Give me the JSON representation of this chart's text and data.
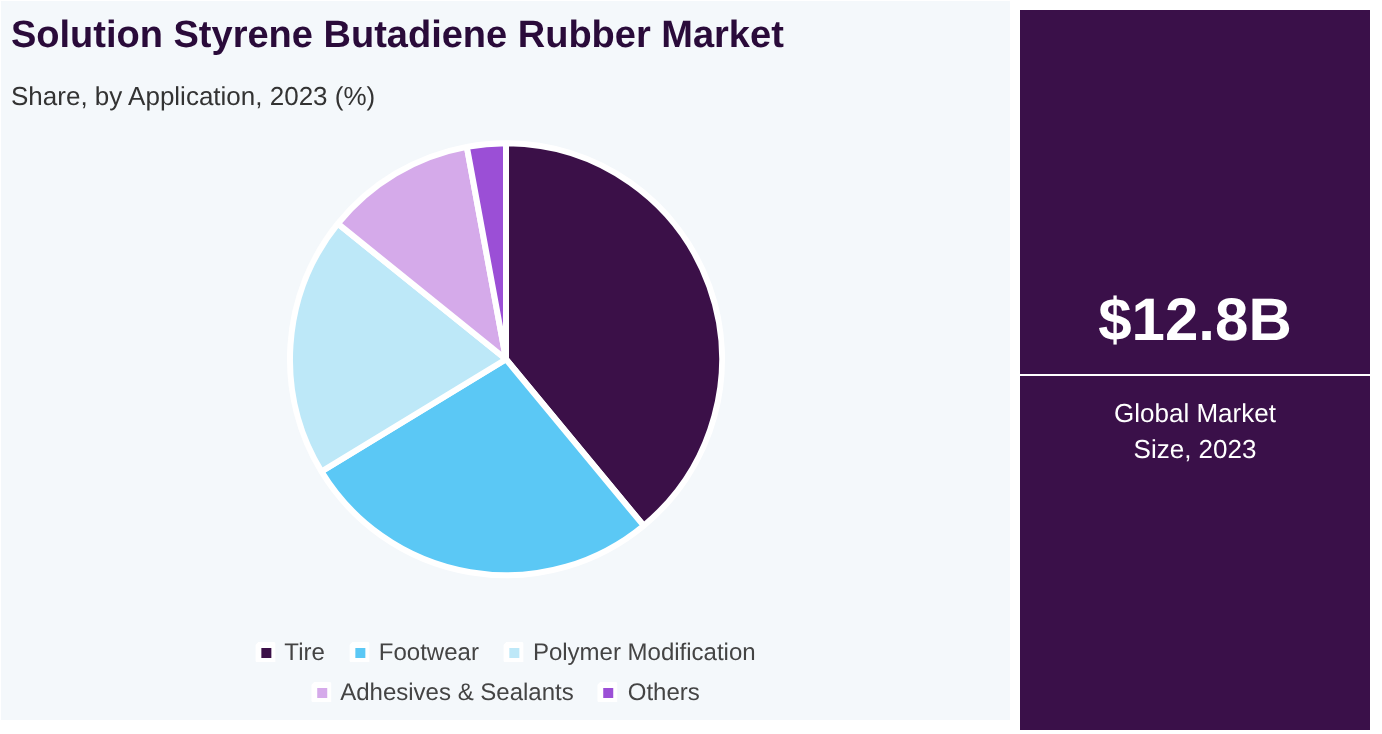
{
  "chart_data": {
    "type": "pie",
    "title": "Solution Styrene Butadiene Rubber Market",
    "subtitle": "Share, by Application, 2023 (%)",
    "categories": [
      "Tire",
      "Footwear",
      "Polymer Modification",
      "Adhesives & Sealants",
      "Others"
    ],
    "values": [
      39,
      27.3,
      19.5,
      11.3,
      2.9
    ],
    "colors": [
      "#3b1048",
      "#5bc8f5",
      "#bde8f8",
      "#d5aaea",
      "#9b4fd6"
    ],
    "legend": "bottom",
    "annotations": [
      "$12.8B",
      "Global Market Size, 2023"
    ]
  }
}
